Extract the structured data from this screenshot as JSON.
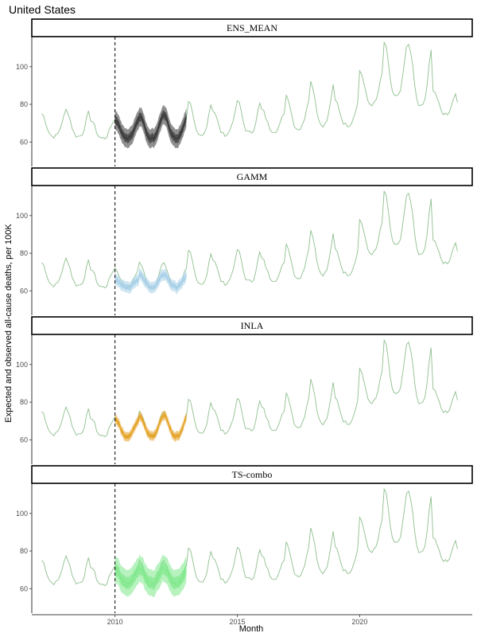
{
  "title": "United States",
  "colors": {
    "observed": "#8fbf8f",
    "ENS_MEAN": "#333333",
    "GAMM": "#a6cfe8",
    "INLA": "#e6a020",
    "TS-combo": "#7ee88a"
  },
  "chart_data": {
    "type": "line",
    "title": "United States",
    "xlabel": "Month",
    "ylabel": "Expected and observed all-cause deaths, per 100K",
    "xlim": [
      2006.6,
      2024.6
    ],
    "ylim": [
      47,
      116
    ],
    "x_ticks": [
      2010,
      2015,
      2020
    ],
    "y_ticks": [
      60,
      80,
      100
    ],
    "vline_x": 2010.0,
    "grid": false,
    "facets": [
      "ENS_MEAN",
      "GAMM",
      "INLA",
      "TS-combo"
    ],
    "observed_annual": [
      {
        "year": 2007,
        "peak": 75,
        "trough": 63
      },
      {
        "year": 2008,
        "peak": 77,
        "trough": 63
      },
      {
        "year": 2009,
        "peak": 72,
        "trough": 62
      },
      {
        "year": 2010,
        "peak": 72,
        "trough": 62
      },
      {
        "year": 2011,
        "peak": 75,
        "trough": 62
      },
      {
        "year": 2012,
        "peak": 74,
        "trough": 62
      },
      {
        "year": 2013,
        "peak": 82,
        "trough": 63
      },
      {
        "year": 2014,
        "peak": 77,
        "trough": 64
      },
      {
        "year": 2015,
        "peak": 82,
        "trough": 65
      },
      {
        "year": 2016,
        "peak": 77,
        "trough": 66
      },
      {
        "year": 2017,
        "peak": 85,
        "trough": 67
      },
      {
        "year": 2018,
        "peak": 92,
        "trough": 69
      },
      {
        "year": 2019,
        "peak": 82,
        "trough": 69
      },
      {
        "year": 2020,
        "peak": 98,
        "trough": 80
      },
      {
        "year": 2021,
        "peak": 113,
        "trough": 84
      },
      {
        "year": 2022,
        "peak": 112,
        "trough": 79
      },
      {
        "year": 2023,
        "peak": 88,
        "trough": 75
      },
      {
        "year": 2024,
        "peak": 80,
        "trough": 73
      }
    ],
    "series": [
      {
        "name": "ENS_MEAN",
        "x_range": [
          2010.0,
          2012.95
        ],
        "peaks": [
          72,
          74,
          74
        ],
        "troughs": [
          62,
          62,
          62
        ],
        "band_halfwidth": 5
      },
      {
        "name": "GAMM",
        "x_range": [
          2010.0,
          2012.95
        ],
        "peaks": [
          66,
          69,
          69
        ],
        "troughs": [
          62,
          62,
          62
        ],
        "band_halfwidth": 3
      },
      {
        "name": "INLA",
        "x_range": [
          2010.0,
          2012.95
        ],
        "peaks": [
          71,
          73,
          73
        ],
        "troughs": [
          62,
          62,
          62
        ],
        "band_halfwidth": 2.5
      },
      {
        "name": "TS-combo",
        "x_range": [
          2010.0,
          2012.95
        ],
        "peaks": [
          70,
          71,
          71
        ],
        "troughs": [
          63,
          63,
          63
        ],
        "band_halfwidth": 7
      }
    ]
  }
}
